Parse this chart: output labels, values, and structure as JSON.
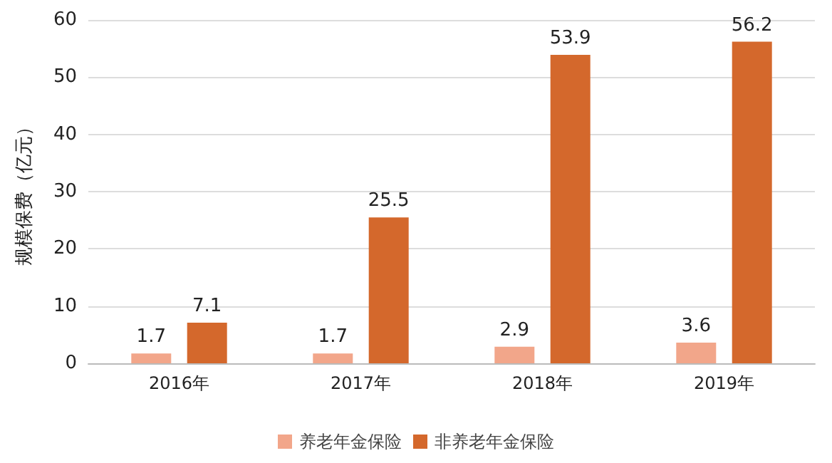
{
  "chart_data": {
    "type": "bar",
    "ylabel": "规模保费（亿元）",
    "categories": [
      "2016年",
      "2017年",
      "2018年",
      "2019年"
    ],
    "series": [
      {
        "name": "养老年金保险",
        "color": "#f2a68a",
        "values": [
          1.7,
          1.7,
          2.9,
          3.6
        ]
      },
      {
        "name": "非养老年金保险",
        "color": "#d4682c",
        "values": [
          7.1,
          25.5,
          53.9,
          56.2
        ]
      }
    ],
    "ylim": [
      0,
      60
    ],
    "yticks": [
      0,
      10,
      20,
      30,
      40,
      50,
      60
    ],
    "grid": "y",
    "legend": "bottom",
    "data_labels": true
  }
}
